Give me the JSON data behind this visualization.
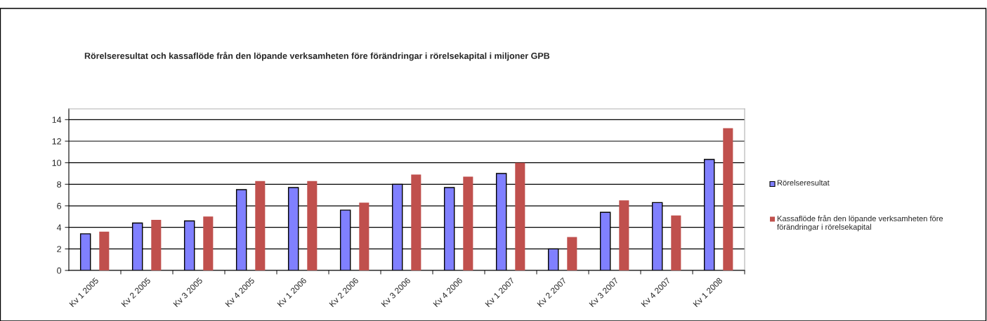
{
  "chart_data": {
    "type": "bar",
    "title": "Rörelseresultat och kassaflöde från den löpande verksamheten före förändringar i rörelsekapital i miljoner GPB",
    "categories": [
      "Kv 1 2005",
      "Kv 2 2005",
      "Kv 3 2005",
      "Kv 4 2005",
      "Kv 1 2006",
      "Kv 2 2006",
      "Kv 3 2006",
      "Kv 4 2006",
      "Kv 1 2007",
      "Kv 2 2007",
      "Kv 3 2007",
      "Kv 4 2007",
      "Kv 1 2008"
    ],
    "series": [
      {
        "name": "Rörelseresultat",
        "color": "#8080ff",
        "values": [
          3.4,
          4.4,
          4.6,
          7.5,
          7.7,
          5.6,
          8.0,
          7.7,
          9.0,
          2.0,
          5.4,
          6.3,
          10.3
        ]
      },
      {
        "name": "Kassaflöde från den löpande verksamheten före förändringar i rörelsekapital",
        "color": "#c0504d",
        "values": [
          3.6,
          4.7,
          5.0,
          8.3,
          8.3,
          6.3,
          8.9,
          8.7,
          10.0,
          3.1,
          6.5,
          5.1,
          13.2
        ]
      }
    ],
    "ylim": [
      0,
      15
    ],
    "yticks": [
      0,
      2,
      4,
      6,
      8,
      10,
      12,
      14
    ],
    "grid": "y",
    "legend": "right"
  }
}
